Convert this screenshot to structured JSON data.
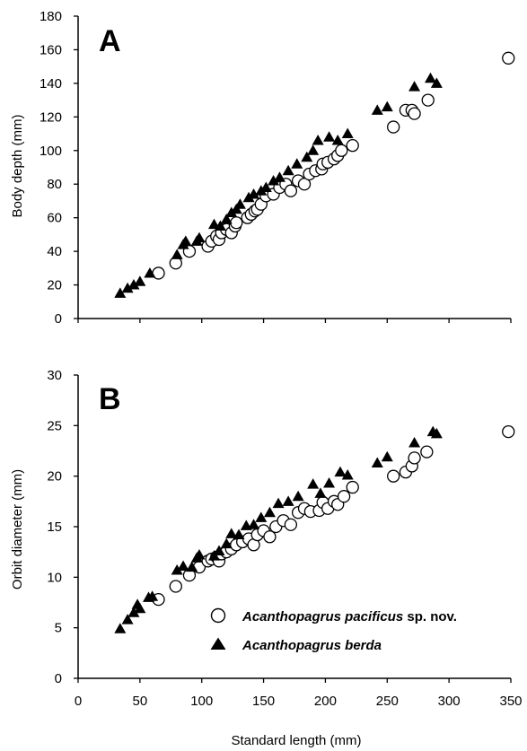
{
  "chart_data": [
    {
      "type": "scatter",
      "panel_label": "A",
      "xlabel": "",
      "ylabel": "Body depth  (mm)",
      "xlim": [
        0,
        350
      ],
      "ylim": [
        0,
        180
      ],
      "xticks": [],
      "yticks": [
        "0",
        "20",
        "40",
        "60",
        "80",
        "100",
        "120",
        "140",
        "160",
        "180"
      ],
      "grid": false,
      "series": [
        {
          "name": "Acanthopagrus pacificus sp. nov.",
          "marker": "open-circle",
          "points": [
            [
              65,
              27
            ],
            [
              79,
              33
            ],
            [
              90,
              40
            ],
            [
              105,
              43
            ],
            [
              108,
              46
            ],
            [
              112,
              49
            ],
            [
              114,
              47
            ],
            [
              116,
              51
            ],
            [
              120,
              53
            ],
            [
              124,
              51
            ],
            [
              127,
              55
            ],
            [
              128,
              57
            ],
            [
              137,
              60
            ],
            [
              140,
              62
            ],
            [
              143,
              64
            ],
            [
              145,
              65
            ],
            [
              148,
              68
            ],
            [
              152,
              73
            ],
            [
              158,
              74
            ],
            [
              163,
              78
            ],
            [
              168,
              80
            ],
            [
              172,
              76
            ],
            [
              178,
              82
            ],
            [
              183,
              80
            ],
            [
              187,
              86
            ],
            [
              192,
              88
            ],
            [
              197,
              89
            ],
            [
              198,
              92
            ],
            [
              202,
              93
            ],
            [
              207,
              95
            ],
            [
              210,
              97
            ],
            [
              213,
              100
            ],
            [
              222,
              103
            ],
            [
              255,
              114
            ],
            [
              265,
              124
            ],
            [
              270,
              124
            ],
            [
              272,
              122
            ],
            [
              283,
              130
            ],
            [
              348,
              155
            ]
          ]
        },
        {
          "name": "Acanthopagrus berda",
          "marker": "filled-triangle",
          "points": [
            [
              34,
              15
            ],
            [
              40,
              18
            ],
            [
              45,
              20
            ],
            [
              50,
              22
            ],
            [
              58,
              27
            ],
            [
              80,
              38
            ],
            [
              85,
              44
            ],
            [
              87,
              46
            ],
            [
              96,
              46
            ],
            [
              98,
              48
            ],
            [
              110,
              56
            ],
            [
              115,
              55
            ],
            [
              120,
              59
            ],
            [
              124,
              63
            ],
            [
              128,
              65
            ],
            [
              131,
              68
            ],
            [
              138,
              72
            ],
            [
              142,
              74
            ],
            [
              148,
              76
            ],
            [
              152,
              78
            ],
            [
              158,
              82
            ],
            [
              163,
              84
            ],
            [
              170,
              88
            ],
            [
              177,
              92
            ],
            [
              185,
              96
            ],
            [
              190,
              100
            ],
            [
              194,
              106
            ],
            [
              203,
              108
            ],
            [
              210,
              106
            ],
            [
              218,
              110
            ],
            [
              242,
              124
            ],
            [
              250,
              126
            ],
            [
              272,
              138
            ],
            [
              285,
              143
            ],
            [
              290,
              140
            ]
          ]
        }
      ]
    },
    {
      "type": "scatter",
      "panel_label": "B",
      "xlabel": "Standard length (mm)",
      "ylabel": "Orbit diameter (mm)",
      "xlim": [
        0,
        350
      ],
      "ylim": [
        0,
        30
      ],
      "xticks": [
        "0",
        "50",
        "100",
        "150",
        "200",
        "250",
        "300",
        "350"
      ],
      "yticks": [
        "0",
        "5",
        "10",
        "15",
        "20",
        "25",
        "30"
      ],
      "grid": false,
      "legend_position": "bottom-right",
      "series": [
        {
          "name": "Acanthopagrus pacificus sp. nov.",
          "marker": "open-circle",
          "points": [
            [
              65,
              7.8
            ],
            [
              79,
              9.1
            ],
            [
              90,
              10.2
            ],
            [
              98,
              11.0
            ],
            [
              105,
              11.6
            ],
            [
              108,
              11.8
            ],
            [
              112,
              12.0
            ],
            [
              114,
              11.6
            ],
            [
              116,
              12.3
            ],
            [
              120,
              12.5
            ],
            [
              124,
              12.8
            ],
            [
              128,
              13.2
            ],
            [
              133,
              13.5
            ],
            [
              138,
              13.8
            ],
            [
              142,
              13.2
            ],
            [
              145,
              14.2
            ],
            [
              150,
              14.6
            ],
            [
              155,
              14.0
            ],
            [
              160,
              15.0
            ],
            [
              166,
              15.6
            ],
            [
              172,
              15.2
            ],
            [
              178,
              16.4
            ],
            [
              183,
              16.8
            ],
            [
              188,
              16.5
            ],
            [
              195,
              16.6
            ],
            [
              198,
              17.4
            ],
            [
              202,
              16.8
            ],
            [
              207,
              17.5
            ],
            [
              210,
              17.2
            ],
            [
              215,
              18.0
            ],
            [
              222,
              18.9
            ],
            [
              255,
              20.0
            ],
            [
              265,
              20.4
            ],
            [
              270,
              21.0
            ],
            [
              272,
              21.8
            ],
            [
              282,
              22.4
            ],
            [
              348,
              24.4
            ]
          ]
        },
        {
          "name": "Acanthopagrus berda",
          "marker": "filled-triangle",
          "points": [
            [
              34,
              4.9
            ],
            [
              40,
              5.8
            ],
            [
              45,
              6.5
            ],
            [
              48,
              7.3
            ],
            [
              50,
              6.9
            ],
            [
              57,
              8.0
            ],
            [
              60,
              8.1
            ],
            [
              80,
              10.7
            ],
            [
              85,
              11.1
            ],
            [
              92,
              11.0
            ],
            [
              96,
              11.9
            ],
            [
              98,
              12.2
            ],
            [
              110,
              12.1
            ],
            [
              114,
              12.6
            ],
            [
              120,
              13.3
            ],
            [
              124,
              14.3
            ],
            [
              130,
              14.2
            ],
            [
              136,
              15.1
            ],
            [
              142,
              15.2
            ],
            [
              148,
              15.9
            ],
            [
              155,
              16.4
            ],
            [
              162,
              17.3
            ],
            [
              170,
              17.5
            ],
            [
              178,
              18.0
            ],
            [
              190,
              19.2
            ],
            [
              196,
              18.3
            ],
            [
              203,
              19.3
            ],
            [
              212,
              20.4
            ],
            [
              218,
              20.1
            ],
            [
              242,
              21.3
            ],
            [
              250,
              21.9
            ],
            [
              272,
              23.3
            ],
            [
              287,
              24.4
            ],
            [
              290,
              24.2
            ]
          ]
        }
      ]
    }
  ]
}
